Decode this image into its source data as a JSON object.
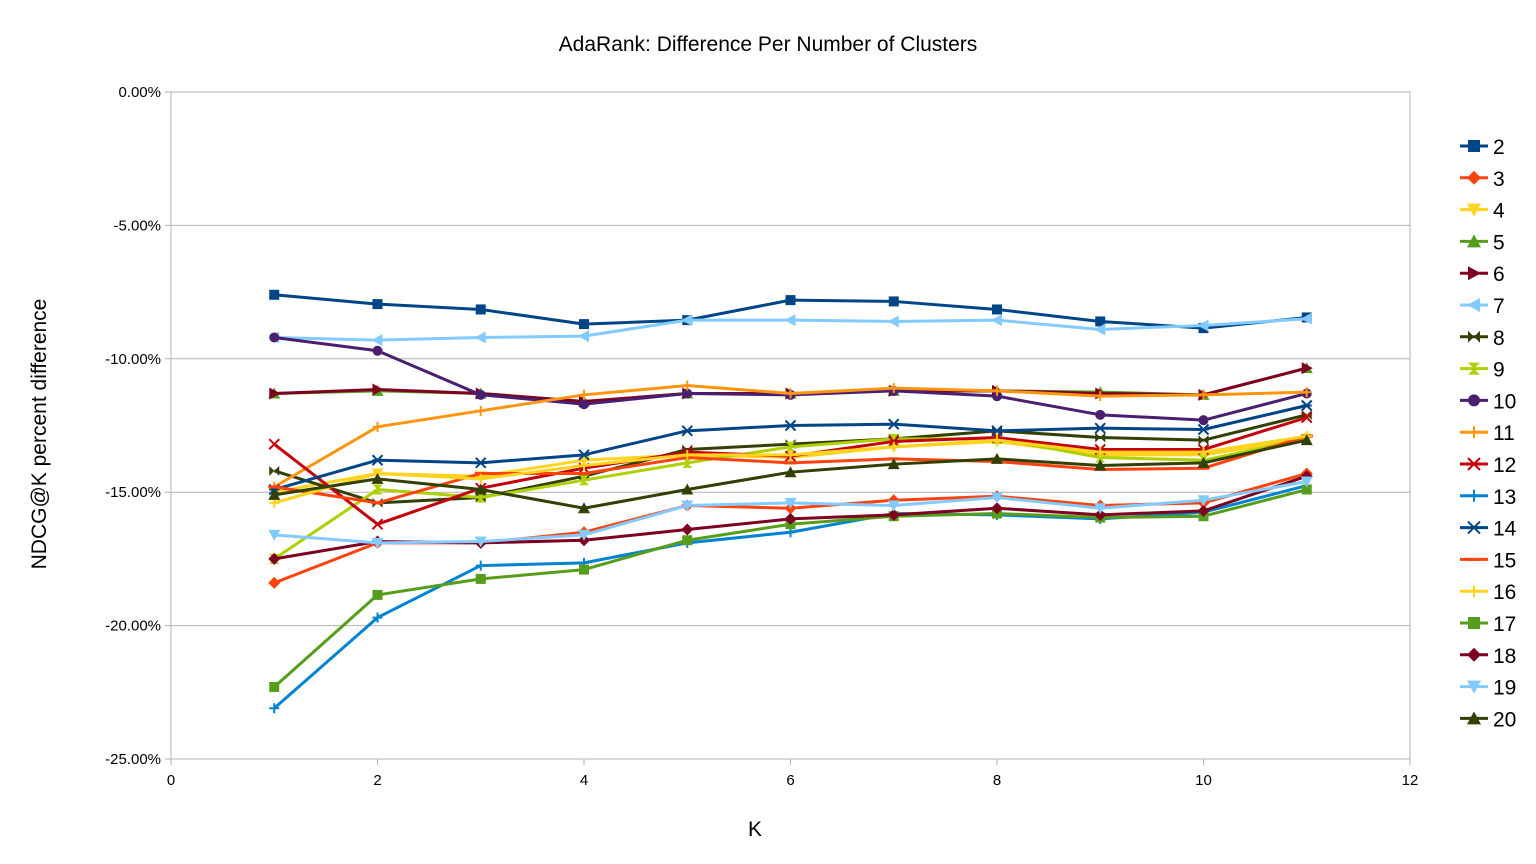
{
  "chart_data": {
    "type": "line",
    "title": "AdaRank: Difference Per Number of Clusters",
    "xlabel": "K",
    "ylabel": "NDCG@K percent difference",
    "xlim": [
      0,
      12
    ],
    "ylim": [
      -25,
      0
    ],
    "x_ticks": [
      "0",
      "2",
      "4",
      "6",
      "8",
      "10",
      "12"
    ],
    "y_ticks": [
      "0.00%",
      "-5.00%",
      "-10.00%",
      "-15.00%",
      "-20.00%",
      "-25.00%"
    ],
    "grid": "horizontal",
    "legend_position": "right",
    "x": [
      1,
      2,
      3,
      4,
      5,
      6,
      7,
      8,
      9,
      10,
      11
    ],
    "series": [
      {
        "name": "2",
        "color": "#004586",
        "marker": "square",
        "values": [
          -7.6,
          -7.95,
          -8.15,
          -8.7,
          -8.55,
          -7.8,
          -7.85,
          -8.15,
          -8.6,
          -8.85,
          -8.45
        ]
      },
      {
        "name": "3",
        "color": "#ff420e",
        "marker": "diamond",
        "values": [
          -18.4,
          -16.9,
          -16.9,
          -16.5,
          -15.5,
          -15.6,
          -15.3,
          -15.15,
          -15.5,
          -15.4,
          -14.3
        ]
      },
      {
        "name": "4",
        "color": "#ffd320",
        "marker": "triangle-down",
        "values": [
          -15.0,
          -14.3,
          -14.4,
          -13.8,
          -13.6,
          -13.7,
          -13.3,
          -13.1,
          -13.6,
          -13.6,
          -13.0
        ]
      },
      {
        "name": "5",
        "color": "#579d1c",
        "marker": "triangle-up",
        "values": [
          -11.3,
          -11.2,
          -11.3,
          -11.6,
          -11.3,
          -11.3,
          -11.2,
          -11.2,
          -11.25,
          -11.35,
          -10.35
        ]
      },
      {
        "name": "6",
        "color": "#7e0021",
        "marker": "triangle-right",
        "values": [
          -11.3,
          -11.15,
          -11.3,
          -11.6,
          -11.3,
          -11.3,
          -11.2,
          -11.2,
          -11.3,
          -11.35,
          -10.35
        ]
      },
      {
        "name": "7",
        "color": "#83caff",
        "marker": "triangle-left",
        "values": [
          -9.2,
          -9.3,
          -9.2,
          -9.15,
          -8.55,
          -8.55,
          -8.6,
          -8.55,
          -8.9,
          -8.75,
          -8.5
        ]
      },
      {
        "name": "8",
        "color": "#314004",
        "marker": "bowtie-h",
        "values": [
          -14.2,
          -15.4,
          -15.2,
          -14.4,
          -13.4,
          -13.2,
          -13.0,
          -12.7,
          -12.95,
          -13.05,
          -12.1
        ]
      },
      {
        "name": "9",
        "color": "#aecf00",
        "marker": "bowtie-v",
        "values": [
          -17.5,
          -14.9,
          -15.2,
          -14.55,
          -13.9,
          -13.3,
          -13.0,
          -13.0,
          -13.7,
          -13.8,
          -13.0
        ]
      },
      {
        "name": "10",
        "color": "#4b1f6f",
        "marker": "circle",
        "values": [
          -9.2,
          -9.7,
          -11.35,
          -11.7,
          -11.3,
          -11.35,
          -11.2,
          -11.4,
          -12.1,
          -12.3,
          -11.3
        ]
      },
      {
        "name": "11",
        "color": "#ff950e",
        "marker": "plus",
        "values": [
          -14.8,
          -12.55,
          -11.95,
          -11.35,
          -11.0,
          -11.3,
          -11.1,
          -11.2,
          -11.4,
          -11.35,
          -11.25
        ]
      },
      {
        "name": "12",
        "color": "#c5000b",
        "marker": "x",
        "values": [
          -13.2,
          -16.2,
          -14.85,
          -14.1,
          -13.5,
          -13.65,
          -13.1,
          -12.95,
          -13.4,
          -13.4,
          -12.2
        ]
      },
      {
        "name": "13",
        "color": "#0084d1",
        "marker": "plus",
        "values": [
          -23.1,
          -19.7,
          -17.75,
          -17.65,
          -16.9,
          -16.5,
          -15.8,
          -15.85,
          -16.0,
          -15.75,
          -14.75
        ]
      },
      {
        "name": "14",
        "color": "#004586",
        "marker": "star",
        "values": [
          -14.9,
          -13.8,
          -13.9,
          -13.6,
          -12.7,
          -12.5,
          -12.45,
          -12.7,
          -12.6,
          -12.65,
          -11.75
        ]
      },
      {
        "name": "15",
        "color": "#ff420e",
        "marker": "dash",
        "values": [
          -14.8,
          -15.4,
          -14.3,
          -14.3,
          -13.7,
          -13.9,
          -13.75,
          -13.85,
          -14.15,
          -14.1,
          -12.9
        ]
      },
      {
        "name": "16",
        "color": "#ffd320",
        "marker": "plus",
        "values": [
          -15.4,
          -14.3,
          -14.5,
          -14.0,
          -13.6,
          -13.6,
          -13.3,
          -13.05,
          -13.5,
          -13.5,
          -12.9
        ]
      },
      {
        "name": "17",
        "color": "#579d1c",
        "marker": "square",
        "values": [
          -22.3,
          -18.85,
          -18.25,
          -17.9,
          -16.8,
          -16.2,
          -15.9,
          -15.8,
          -15.95,
          -15.9,
          -14.9
        ]
      },
      {
        "name": "18",
        "color": "#7e0021",
        "marker": "diamond",
        "values": [
          -17.5,
          -16.85,
          -16.9,
          -16.8,
          -16.4,
          -16.0,
          -15.85,
          -15.6,
          -15.85,
          -15.7,
          -14.4
        ]
      },
      {
        "name": "19",
        "color": "#83caff",
        "marker": "triangle-down",
        "values": [
          -16.6,
          -16.9,
          -16.85,
          -16.6,
          -15.5,
          -15.4,
          -15.5,
          -15.2,
          -15.6,
          -15.3,
          -14.6
        ]
      },
      {
        "name": "20",
        "color": "#314004",
        "marker": "triangle-up",
        "values": [
          -15.1,
          -14.5,
          -14.9,
          -15.6,
          -14.9,
          -14.25,
          -13.95,
          -13.75,
          -14.0,
          -13.9,
          -13.05
        ]
      }
    ]
  }
}
